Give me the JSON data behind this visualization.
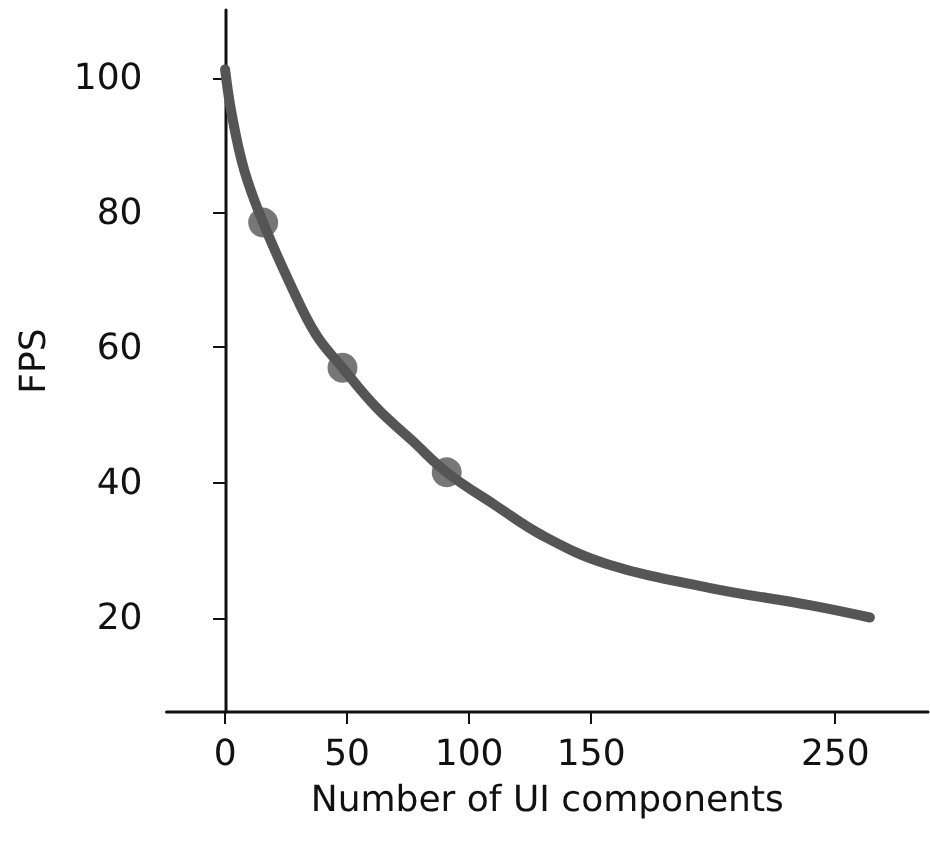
{
  "chart_data": {
    "type": "line",
    "xlabel": "Number of UI components",
    "ylabel": "FPS",
    "xlim": [
      -24,
      288
    ],
    "ylim": [
      6,
      110
    ],
    "xticks": [
      0,
      50,
      100,
      150,
      250
    ],
    "yticks": [
      20,
      40,
      60,
      80,
      100
    ],
    "series": [
      {
        "color": "#555555",
        "marker": "none",
        "x": [
          0,
          2.7,
          7.9,
          15.6,
          26.7,
          37.1,
          48.1,
          62,
          76.7,
          90.8,
          110,
          130.8,
          156.7,
          198.3,
          240,
          264.2
        ],
        "values": [
          101.2,
          94.6,
          86.2,
          78.5,
          69.4,
          62.0,
          57.0,
          51.1,
          46.2,
          41.5,
          36.8,
          32.0,
          27.9,
          24.4,
          21.8,
          20.0
        ]
      },
      {
        "type": "scatter",
        "color": "#555555",
        "marker": "circle",
        "x": [
          15.6,
          48.1,
          90.8
        ],
        "values": [
          78.5,
          57.0,
          41.5
        ]
      }
    ]
  }
}
